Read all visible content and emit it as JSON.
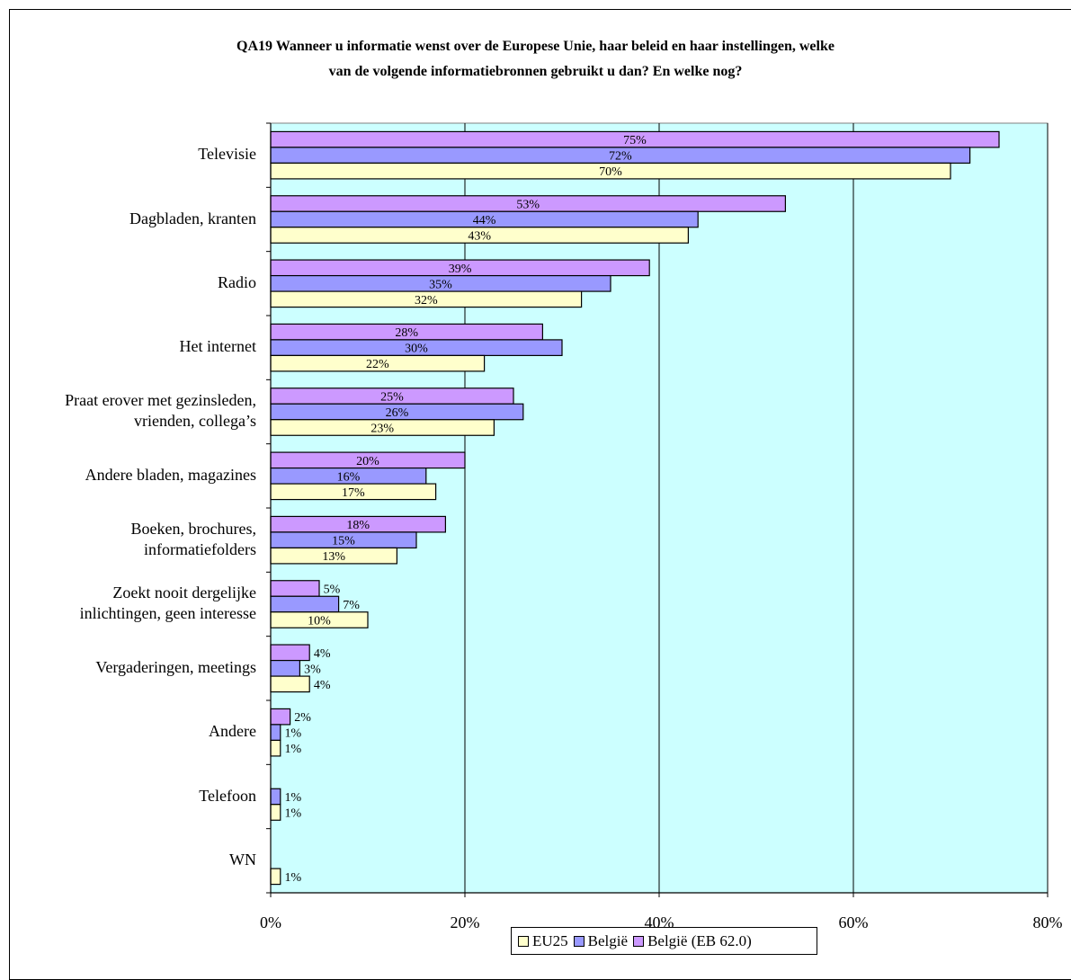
{
  "chart_data": {
    "type": "bar",
    "orientation": "horizontal",
    "title_lines": [
      "QA19 Wanneer u informatie wenst over de Europese Unie, haar beleid en haar instellingen, welke",
      "van de volgende informatiebronnen gebruikt u dan? En welke nog?"
    ],
    "categories": [
      [
        "Televisie"
      ],
      [
        "Dagbladen, kranten"
      ],
      [
        "Radio"
      ],
      [
        "Het internet"
      ],
      [
        "Praat erover met gezinsleden,",
        "vrienden, collega’s"
      ],
      [
        "Andere bladen, magazines"
      ],
      [
        "Boeken, brochures,",
        "informatiefolders"
      ],
      [
        "Zoekt nooit dergelijke",
        "inlichtingen, geen interesse"
      ],
      [
        "Vergaderingen, meetings"
      ],
      [
        "Andere"
      ],
      [
        "Telefoon"
      ],
      [
        "WN"
      ]
    ],
    "series": [
      {
        "name": "België (EB 62.0)",
        "color": "#CC99FF",
        "values": [
          75,
          53,
          39,
          28,
          25,
          20,
          18,
          5,
          4,
          2,
          null,
          null
        ],
        "labels": [
          "75%",
          "53%",
          "39%",
          "28%",
          "25%",
          "20%",
          "18%",
          "5%",
          "4%",
          "2%",
          null,
          null
        ]
      },
      {
        "name": "België",
        "color": "#9999FF",
        "values": [
          72,
          44,
          35,
          30,
          26,
          16,
          15,
          7,
          3,
          1,
          1,
          null
        ],
        "labels": [
          "72%",
          "44%",
          "35%",
          "30%",
          "26%",
          "16%",
          "15%",
          "7%",
          "3%",
          "1%",
          "1%",
          null
        ]
      },
      {
        "name": "EU25",
        "color": "#FFFFCC",
        "values": [
          70,
          43,
          32,
          22,
          23,
          17,
          13,
          10,
          4,
          1,
          1,
          1
        ],
        "labels": [
          "70%",
          "43%",
          "32%",
          "22%",
          "23%",
          "17%",
          "13%",
          "10%",
          "4%",
          "1%",
          "1%",
          "1%"
        ]
      }
    ],
    "xlim": [
      0,
      80
    ],
    "x_ticks": [
      "0%",
      "20%",
      "40%",
      "60%",
      "80%"
    ],
    "grid": true,
    "plot_background": "#CCFFFF",
    "legend_position": "bottom",
    "legend_order": [
      "EU25",
      "België",
      "België (EB 62.0)"
    ]
  }
}
